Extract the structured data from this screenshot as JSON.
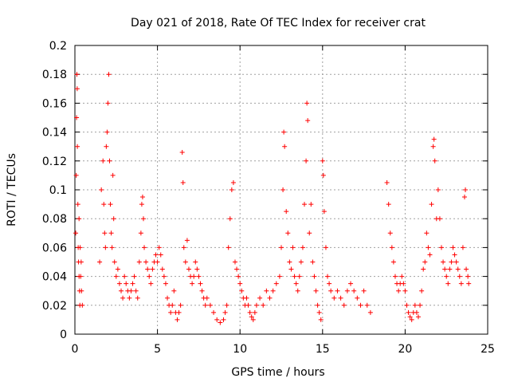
{
  "chart_data": {
    "type": "scatter",
    "title": "Day 021 of 2018, Rate Of TEC Index for receiver crat",
    "xlabel": "GPS time / hours",
    "ylabel": "ROTI / TECUs",
    "xlim": [
      0,
      25
    ],
    "ylim": [
      0,
      0.2
    ],
    "x_ticks": [
      0,
      5,
      10,
      15,
      20,
      25
    ],
    "x_tick_labels": [
      "0",
      "5",
      "10",
      "15",
      "20",
      "25"
    ],
    "y_ticks": [
      0,
      0.02,
      0.04,
      0.06,
      0.08,
      0.1,
      0.12,
      0.14,
      0.16,
      0.18,
      0.2
    ],
    "y_tick_labels": [
      "0",
      "0.02",
      "0.04",
      "0.06",
      "0.08",
      "0.1",
      "0.12",
      "0.14",
      "0.16",
      "0.18",
      "0.2"
    ],
    "grid": true,
    "marker": "plus",
    "color": "#ff0000",
    "series": [
      {
        "name": "ROTI",
        "points": [
          [
            0.05,
            0.07
          ],
          [
            0.1,
            0.15
          ],
          [
            0.12,
            0.18
          ],
          [
            0.15,
            0.13
          ],
          [
            0.18,
            0.09
          ],
          [
            0.2,
            0.06
          ],
          [
            0.22,
            0.05
          ],
          [
            0.25,
            0.04
          ],
          [
            0.28,
            0.03
          ],
          [
            0.3,
            0.02
          ],
          [
            0.35,
            0.04
          ],
          [
            0.4,
            0.03
          ],
          [
            0.45,
            0.02
          ],
          [
            0.08,
            0.11
          ],
          [
            0.14,
            0.17
          ],
          [
            0.25,
            0.08
          ],
          [
            0.32,
            0.06
          ],
          [
            0.38,
            0.05
          ],
          [
            1.5,
            0.05
          ],
          [
            1.6,
            0.1
          ],
          [
            1.7,
            0.12
          ],
          [
            1.75,
            0.09
          ],
          [
            1.8,
            0.07
          ],
          [
            1.85,
            0.06
          ],
          [
            1.9,
            0.13
          ],
          [
            1.95,
            0.14
          ],
          [
            2.0,
            0.16
          ],
          [
            2.05,
            0.18
          ],
          [
            2.1,
            0.12
          ],
          [
            2.15,
            0.09
          ],
          [
            2.2,
            0.07
          ],
          [
            2.25,
            0.06
          ],
          [
            2.3,
            0.11
          ],
          [
            2.35,
            0.08
          ],
          [
            2.4,
            0.05
          ],
          [
            2.5,
            0.04
          ],
          [
            2.6,
            0.045
          ],
          [
            2.7,
            0.035
          ],
          [
            2.8,
            0.03
          ],
          [
            2.9,
            0.025
          ],
          [
            3.0,
            0.04
          ],
          [
            3.1,
            0.035
          ],
          [
            3.2,
            0.03
          ],
          [
            3.3,
            0.025
          ],
          [
            3.4,
            0.03
          ],
          [
            3.5,
            0.035
          ],
          [
            3.6,
            0.04
          ],
          [
            3.7,
            0.03
          ],
          [
            3.8,
            0.025
          ],
          [
            3.9,
            0.05
          ],
          [
            4.0,
            0.07
          ],
          [
            4.05,
            0.09
          ],
          [
            4.1,
            0.095
          ],
          [
            4.15,
            0.08
          ],
          [
            4.2,
            0.06
          ],
          [
            4.3,
            0.05
          ],
          [
            4.4,
            0.045
          ],
          [
            4.5,
            0.04
          ],
          [
            4.6,
            0.035
          ],
          [
            4.7,
            0.045
          ],
          [
            4.8,
            0.05
          ],
          [
            4.9,
            0.055
          ],
          [
            5.0,
            0.05
          ],
          [
            5.1,
            0.06
          ],
          [
            5.2,
            0.055
          ],
          [
            5.3,
            0.045
          ],
          [
            5.4,
            0.04
          ],
          [
            5.5,
            0.035
          ],
          [
            5.6,
            0.025
          ],
          [
            5.7,
            0.02
          ],
          [
            5.8,
            0.015
          ],
          [
            5.9,
            0.02
          ],
          [
            6.0,
            0.03
          ],
          [
            6.1,
            0.015
          ],
          [
            6.2,
            0.01
          ],
          [
            6.3,
            0.015
          ],
          [
            6.4,
            0.02
          ],
          [
            6.5,
            0.126
          ],
          [
            6.55,
            0.105
          ],
          [
            6.6,
            0.06
          ],
          [
            6.7,
            0.05
          ],
          [
            6.8,
            0.065
          ],
          [
            6.9,
            0.045
          ],
          [
            7.0,
            0.04
          ],
          [
            7.1,
            0.035
          ],
          [
            7.2,
            0.04
          ],
          [
            7.3,
            0.05
          ],
          [
            7.4,
            0.045
          ],
          [
            7.5,
            0.04
          ],
          [
            7.6,
            0.035
          ],
          [
            7.7,
            0.03
          ],
          [
            7.8,
            0.025
          ],
          [
            7.9,
            0.02
          ],
          [
            8.0,
            0.025
          ],
          [
            8.2,
            0.02
          ],
          [
            8.4,
            0.015
          ],
          [
            8.6,
            0.01
          ],
          [
            8.8,
            0.008
          ],
          [
            9.0,
            0.01
          ],
          [
            9.1,
            0.015
          ],
          [
            9.2,
            0.02
          ],
          [
            9.3,
            0.06
          ],
          [
            9.4,
            0.08
          ],
          [
            9.5,
            0.1
          ],
          [
            9.6,
            0.105
          ],
          [
            9.7,
            0.05
          ],
          [
            9.8,
            0.045
          ],
          [
            9.9,
            0.04
          ],
          [
            10.0,
            0.035
          ],
          [
            10.1,
            0.03
          ],
          [
            10.2,
            0.025
          ],
          [
            10.3,
            0.02
          ],
          [
            10.4,
            0.025
          ],
          [
            10.5,
            0.02
          ],
          [
            10.6,
            0.015
          ],
          [
            10.7,
            0.012
          ],
          [
            10.8,
            0.01
          ],
          [
            10.9,
            0.015
          ],
          [
            11.0,
            0.02
          ],
          [
            11.2,
            0.025
          ],
          [
            11.4,
            0.02
          ],
          [
            11.6,
            0.03
          ],
          [
            11.8,
            0.025
          ],
          [
            12.0,
            0.03
          ],
          [
            12.2,
            0.035
          ],
          [
            12.4,
            0.04
          ],
          [
            12.5,
            0.06
          ],
          [
            12.6,
            0.1
          ],
          [
            12.65,
            0.14
          ],
          [
            12.7,
            0.13
          ],
          [
            12.8,
            0.085
          ],
          [
            12.9,
            0.07
          ],
          [
            13.0,
            0.05
          ],
          [
            13.1,
            0.045
          ],
          [
            13.2,
            0.06
          ],
          [
            13.3,
            0.04
          ],
          [
            13.4,
            0.035
          ],
          [
            13.5,
            0.03
          ],
          [
            13.6,
            0.04
          ],
          [
            13.7,
            0.05
          ],
          [
            13.8,
            0.06
          ],
          [
            13.9,
            0.09
          ],
          [
            14.0,
            0.12
          ],
          [
            14.05,
            0.16
          ],
          [
            14.1,
            0.148
          ],
          [
            14.2,
            0.07
          ],
          [
            14.3,
            0.09
          ],
          [
            14.4,
            0.05
          ],
          [
            14.5,
            0.04
          ],
          [
            14.6,
            0.03
          ],
          [
            14.7,
            0.02
          ],
          [
            14.8,
            0.015
          ],
          [
            14.9,
            0.01
          ],
          [
            15.0,
            0.12
          ],
          [
            15.05,
            0.11
          ],
          [
            15.1,
            0.085
          ],
          [
            15.2,
            0.06
          ],
          [
            15.3,
            0.04
          ],
          [
            15.4,
            0.035
          ],
          [
            15.5,
            0.03
          ],
          [
            15.7,
            0.025
          ],
          [
            15.9,
            0.03
          ],
          [
            16.1,
            0.025
          ],
          [
            16.3,
            0.02
          ],
          [
            16.5,
            0.03
          ],
          [
            16.7,
            0.035
          ],
          [
            16.9,
            0.03
          ],
          [
            17.1,
            0.025
          ],
          [
            17.3,
            0.02
          ],
          [
            17.5,
            0.03
          ],
          [
            17.7,
            0.02
          ],
          [
            17.9,
            0.015
          ],
          [
            18.9,
            0.105
          ],
          [
            19.0,
            0.09
          ],
          [
            19.1,
            0.07
          ],
          [
            19.2,
            0.06
          ],
          [
            19.3,
            0.05
          ],
          [
            19.4,
            0.04
          ],
          [
            19.5,
            0.035
          ],
          [
            19.6,
            0.03
          ],
          [
            19.7,
            0.035
          ],
          [
            19.8,
            0.04
          ],
          [
            19.9,
            0.035
          ],
          [
            20.0,
            0.03
          ],
          [
            20.1,
            0.02
          ],
          [
            20.2,
            0.015
          ],
          [
            20.3,
            0.012
          ],
          [
            20.4,
            0.01
          ],
          [
            20.5,
            0.015
          ],
          [
            20.6,
            0.02
          ],
          [
            20.7,
            0.015
          ],
          [
            20.8,
            0.012
          ],
          [
            20.9,
            0.02
          ],
          [
            21.0,
            0.03
          ],
          [
            21.1,
            0.045
          ],
          [
            21.2,
            0.05
          ],
          [
            21.3,
            0.07
          ],
          [
            21.4,
            0.06
          ],
          [
            21.5,
            0.055
          ],
          [
            21.6,
            0.09
          ],
          [
            21.7,
            0.13
          ],
          [
            21.75,
            0.135
          ],
          [
            21.8,
            0.12
          ],
          [
            21.9,
            0.08
          ],
          [
            22.0,
            0.1
          ],
          [
            22.1,
            0.08
          ],
          [
            22.2,
            0.06
          ],
          [
            22.3,
            0.05
          ],
          [
            22.4,
            0.045
          ],
          [
            22.5,
            0.04
          ],
          [
            22.6,
            0.035
          ],
          [
            22.7,
            0.045
          ],
          [
            22.8,
            0.05
          ],
          [
            22.9,
            0.06
          ],
          [
            23.0,
            0.055
          ],
          [
            23.1,
            0.05
          ],
          [
            23.2,
            0.045
          ],
          [
            23.3,
            0.04
          ],
          [
            23.4,
            0.035
          ],
          [
            23.5,
            0.06
          ],
          [
            23.6,
            0.095
          ],
          [
            23.65,
            0.1
          ],
          [
            23.7,
            0.045
          ],
          [
            23.8,
            0.04
          ],
          [
            23.85,
            0.035
          ]
        ]
      }
    ]
  }
}
